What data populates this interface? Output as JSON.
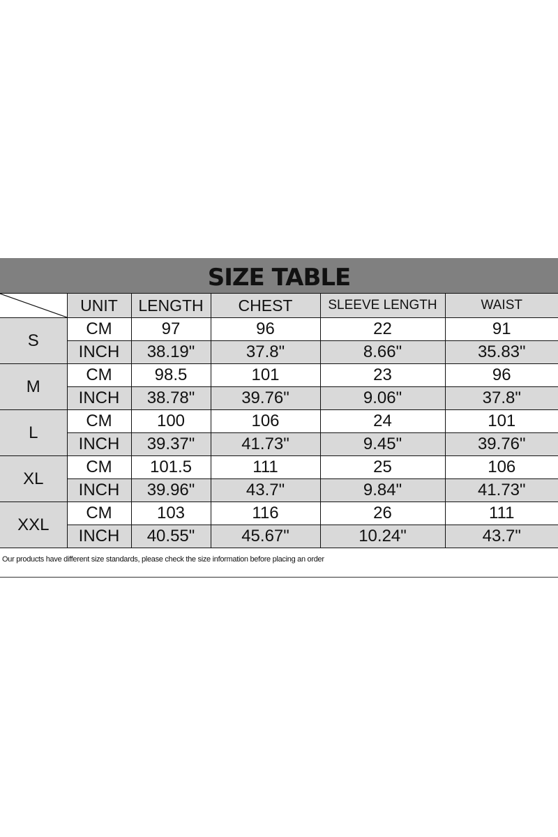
{
  "title": "SIZE TABLE",
  "headers": [
    "UNIT",
    "LENGTH",
    "CHEST",
    "SLEEVE LENGTH",
    "WAIST"
  ],
  "rows": [
    {
      "size": "S",
      "cm": {
        "unit": "CM",
        "values": [
          "97",
          "96",
          "22",
          "91"
        ]
      },
      "inch": {
        "unit": "INCH",
        "values": [
          "38.19\"",
          "37.8\"",
          "8.66\"",
          "35.83\""
        ]
      }
    },
    {
      "size": "M",
      "cm": {
        "unit": "CM",
        "values": [
          "98.5",
          "101",
          "23",
          "96"
        ]
      },
      "inch": {
        "unit": "INCH",
        "values": [
          "38.78\"",
          "39.76\"",
          "9.06\"",
          "37.8\""
        ]
      }
    },
    {
      "size": "L",
      "cm": {
        "unit": "CM",
        "values": [
          "100",
          "106",
          "24",
          "101"
        ]
      },
      "inch": {
        "unit": "INCH",
        "values": [
          "39.37\"",
          "41.73\"",
          "9.45\"",
          "39.76\""
        ]
      }
    },
    {
      "size": "XL",
      "cm": {
        "unit": "CM",
        "values": [
          "101.5",
          "111",
          "25",
          "106"
        ]
      },
      "inch": {
        "unit": "INCH",
        "values": [
          "39.96\"",
          "43.7\"",
          "9.84\"",
          "41.73\""
        ]
      }
    },
    {
      "size": "XXL",
      "cm": {
        "unit": "CM",
        "values": [
          "103",
          "116",
          "26",
          "111"
        ]
      },
      "inch": {
        "unit": "INCH",
        "values": [
          "40.55\"",
          "45.67\"",
          "10.24\"",
          "43.7\""
        ]
      }
    }
  ],
  "note": "Our products have different size standards, please check the size information before placing an order",
  "colors": {
    "title_bg": "#808080",
    "cell_gray": "#d9d9d9"
  }
}
